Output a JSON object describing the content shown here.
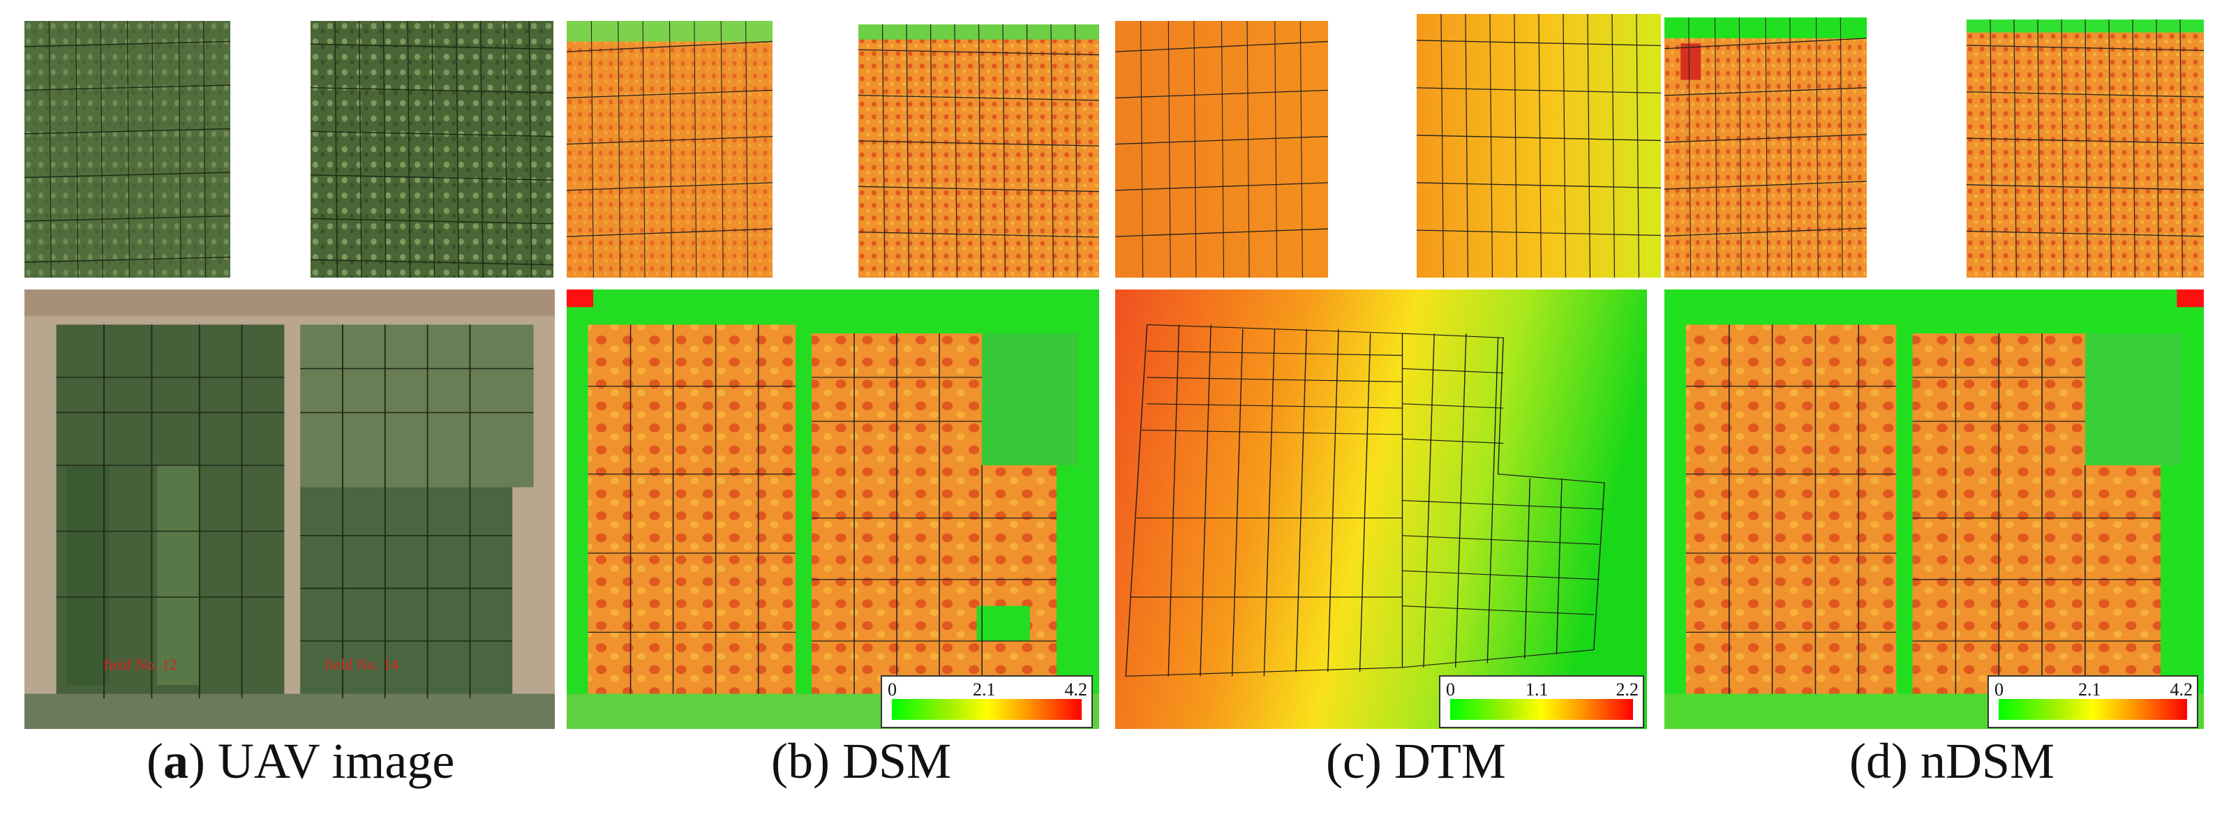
{
  "captions": {
    "a_letter": "a",
    "a_text": "UAV image",
    "b": "(b) DSM",
    "c": "(c) DTM",
    "d": "(d) nDSM"
  },
  "field_labels": {
    "left": "field No. 12",
    "right": "field No. 14"
  },
  "colorbars": {
    "dsm": {
      "min": "0",
      "mid": "2.1",
      "max": "4.2"
    },
    "dtm": {
      "min": "0",
      "mid": "1.1",
      "max": "2.2"
    },
    "ndsm": {
      "min": "0",
      "mid": "2.1",
      "max": "4.2"
    }
  },
  "colors": {
    "uav_green": "#4e6a3c",
    "uav_soil": "#b8a68f",
    "height_low": "#00ff00",
    "height_mid": "#ffff00",
    "height_high": "#ff0000",
    "plot_orange": "#f08a2a"
  }
}
